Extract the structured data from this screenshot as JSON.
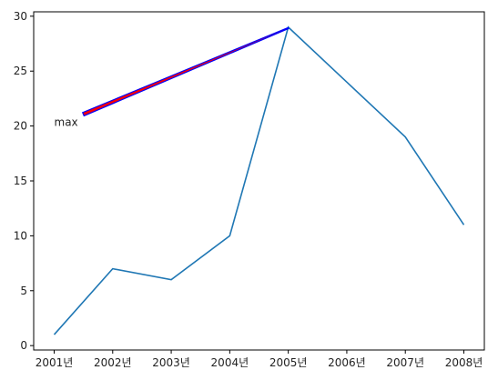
{
  "chart_data": {
    "type": "line",
    "categories": [
      "2001년",
      "2002년",
      "2003년",
      "2004년",
      "2005년",
      "2006년",
      "2007년",
      "2008년"
    ],
    "values": [
      1,
      7,
      6,
      10,
      29,
      24,
      19,
      11
    ],
    "color": "#1f77b4",
    "ylim": [
      -0.4,
      30.4
    ],
    "yticks": [
      0,
      5,
      10,
      15,
      20,
      25,
      30
    ],
    "grid": false,
    "annotation": {
      "text": "max",
      "x": "2005년",
      "y": 29,
      "text_x": "2001년",
      "text_y": 20,
      "arrow_facecolor": "red",
      "arrow_edgecolor": "blue"
    }
  }
}
